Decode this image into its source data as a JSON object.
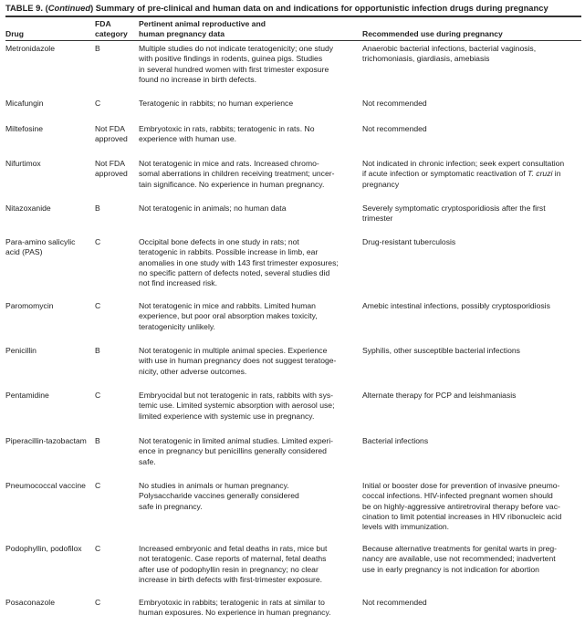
{
  "title": {
    "prefix": "TABLE 9. (",
    "italic": "Continued",
    "suffix": ") Summary of pre-clinical and human data on and indications for opportunistic infection drugs during pregnancy"
  },
  "headers": {
    "drug": "Drug",
    "fda": "FDA\ncategory",
    "data": "Pertinent animal reproductive and\nhuman pregnancy data",
    "rec": "Recommended use during pregnancy"
  },
  "rows": [
    {
      "drug": "Metronidazole",
      "fda": "B",
      "data": "Multiple studies do not indicate teratogenicity; one study\nwith positive findings in rodents, guinea pigs. Studies\nin several hundred women with first trimester exposure\nfound no increase in birth defects.",
      "rec": "Anaerobic bacterial infections, bacterial vaginosis,\ntrichomoniasis, giardiasis, amebiasis"
    },
    {
      "drug": "Micafungin",
      "fda": "C",
      "data": "Teratogenic in rabbits; no human experience",
      "rec": "Not recommended"
    },
    {
      "drug": "Miltefosine",
      "fda": "Not FDA\napproved",
      "data": "Embryotoxic in rats, rabbits; teratogenic in rats. No\nexperience with human use.",
      "rec": "Not recommended"
    },
    {
      "drug": "Nifurtimox",
      "fda": "Not FDA\napproved",
      "data": "Not teratogenic in mice and rats. Increased chromo-\nsomal aberrations in children receiving treatment; uncer-\ntain significance. No experience in human pregnancy.",
      "rec": "Not indicated in chronic infection; seek expert consultation\nif acute infection or symptomatic reactivation of ",
      "rec_italic": "T. cruzi",
      "rec_after": " in\npregnancy"
    },
    {
      "drug": "Nitazoxanide",
      "fda": "B",
      "data": "Not teratogenic in animals; no human data",
      "rec": "Severely symptomatic cryptosporidiosis after the first\ntrimester"
    },
    {
      "drug": "Para-amino salicylic\nacid (PAS)",
      "fda": "C",
      "data": "Occipital bone defects in one study in rats; not\nteratogenic in rabbits. Possible increase in limb, ear\nanomalies in one study with 143 first trimester exposures;\nno specific pattern of defects noted, several studies did\nnot find increased risk.",
      "rec": "Drug-resistant tuberculosis"
    },
    {
      "drug": "Paromomycin",
      "fda": "C",
      "data": "Not teratogenic in mice and rabbits. Limited human\nexperience, but poor oral absorption makes toxicity,\nteratogenicity unlikely.",
      "rec": "Amebic intestinal infections, possibly cryptosporidiosis"
    },
    {
      "drug": "Penicillin",
      "fda": "B",
      "data": "Not teratogenic in multiple animal species. Experience\nwith use in human pregnancy does not suggest teratoge-\nnicity, other adverse outcomes.",
      "rec": "Syphilis, other susceptible bacterial infections"
    },
    {
      "drug": "Pentamidine",
      "fda": "C",
      "data": "Embryocidal but not teratogenic in rats, rabbits with sys-\ntemic use. Limited systemic absorption with aerosol use;\nlimited experience with systemic use in pregnancy.",
      "rec": "Alternate therapy for PCP and leishmaniasis"
    },
    {
      "drug": "Piperacillin-tazobactam",
      "fda": "B",
      "data": "Not teratogenic in limited animal studies. Limited experi-\nence in pregnancy but penicillins generally considered\nsafe.",
      "rec": "Bacterial infections"
    },
    {
      "drug": "Pneumococcal vaccine",
      "fda": "C",
      "data": "No studies in animals or human pregnancy.\nPolysaccharide vaccines generally considered\nsafe in pregnancy.",
      "rec": "Initial or booster dose for prevention of invasive pneumo-\ncoccal infections. HIV-infected pregnant women should\nbe on highly-aggressive antiretroviral therapy before vac-\ncination to limit potential increases in HIV ribonucleic acid\nlevels with immunization."
    },
    {
      "drug": "Podophyllin, podofilox",
      "fda": "C",
      "data": "Increased embryonic and fetal deaths in rats, mice but\nnot teratogenic. Case reports of maternal, fetal deaths\nafter use of podophyllin resin in pregnancy; no clear\nincrease in birth defects with first-trimester exposure.",
      "rec": "Because alternative treatments for genital warts in preg-\nnancy are available, use not recommended; inadvertent\nuse in early pregnancy is not indication for abortion"
    },
    {
      "drug": "Posaconazole",
      "fda": "C",
      "data": "Embryotoxic in rabbits; teratogenic in rats at similar to\nhuman exposures. No experience in human pregnancy.",
      "rec": "Not recommended"
    }
  ]
}
